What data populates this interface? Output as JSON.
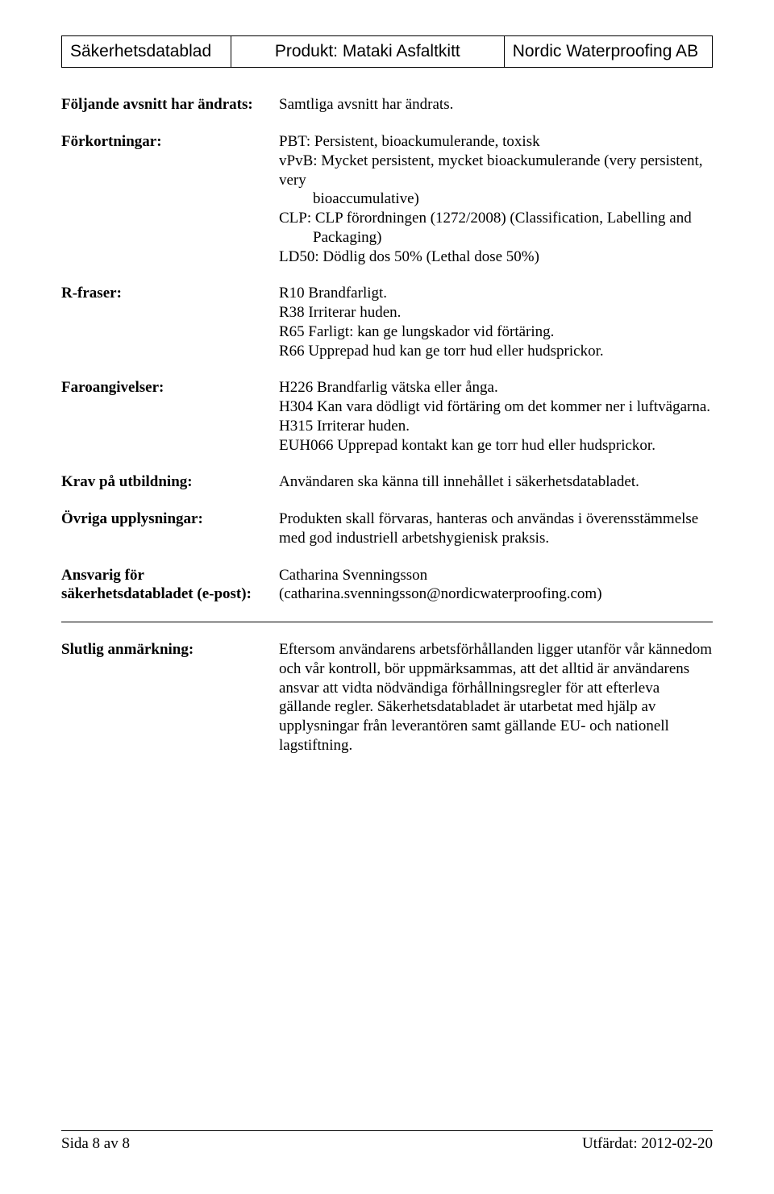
{
  "header": {
    "col1": "Säkerhetsdatablad",
    "col2": "Produkt: Mataki Asfaltkitt",
    "col3": "Nordic Waterproofing AB"
  },
  "rows": {
    "changed_sections": {
      "label": "Följande avsnitt har ändrats:",
      "text": "Samtliga avsnitt har ändrats."
    },
    "abbreviations": {
      "label": "Förkortningar:",
      "pbt": "PBT: Persistent, bioackumulerande, toxisk",
      "vpvb_line1": "vPvB: Mycket persistent, mycket bioackumulerande (very persistent, very",
      "vpvb_line2": "bioaccumulative)",
      "clp_line1": "CLP: CLP förordningen (1272/2008) (Classification, Labelling and",
      "clp_line2": "Packaging)",
      "ld50": "LD50: Dödlig dos 50% (Lethal dose 50%)"
    },
    "r_phrases": {
      "label": "R-fraser:",
      "r10": "R10 Brandfarligt.",
      "r38": "R38 Irriterar huden.",
      "r65": "R65 Farligt: kan ge lungskador vid förtäring.",
      "r66": "R66 Upprepad hud kan ge torr hud eller hudsprickor."
    },
    "h_phrases": {
      "label": "Faroangivelser:",
      "h226": "H226 Brandfarlig vätska eller ånga.",
      "h304": "H304 Kan vara dödligt vid förtäring om det kommer ner i luftvägarna.",
      "h315": "H315 Irriterar huden.",
      "euh066": "EUH066 Upprepad kontakt kan ge torr hud eller hudsprickor."
    },
    "training": {
      "label": "Krav på utbildning:",
      "text": "Användaren ska känna till innehållet i säkerhetsdatabladet."
    },
    "other_info": {
      "label": "Övriga upplysningar:",
      "text": "Produkten skall förvaras, hanteras och användas i överensstämmelse med god industriell arbetshygienisk praksis."
    },
    "responsible": {
      "label_line1": "Ansvarig för",
      "label_line2": "säkerhetsdatabladet (e-post):",
      "name": "Catharina Svenningsson",
      "email": "(catharina.svenningsson@nordicwaterproofing.com)"
    },
    "final_note": {
      "label": "Slutlig anmärkning:",
      "text": "Eftersom användarens arbetsförhållanden ligger utanför vår kännedom och vår kontroll, bör uppmärksammas, att det alltid är användarens ansvar att vidta nödvändiga förhållningsregler för att efterleva gällande regler. Säkerhetsdatabladet är utarbetat med hjälp av upplysningar från leverantören samt gällande EU- och nationell lagstiftning."
    }
  },
  "footer": {
    "left": "Sida 8 av 8",
    "right": "Utfärdat: 2012-02-20"
  }
}
